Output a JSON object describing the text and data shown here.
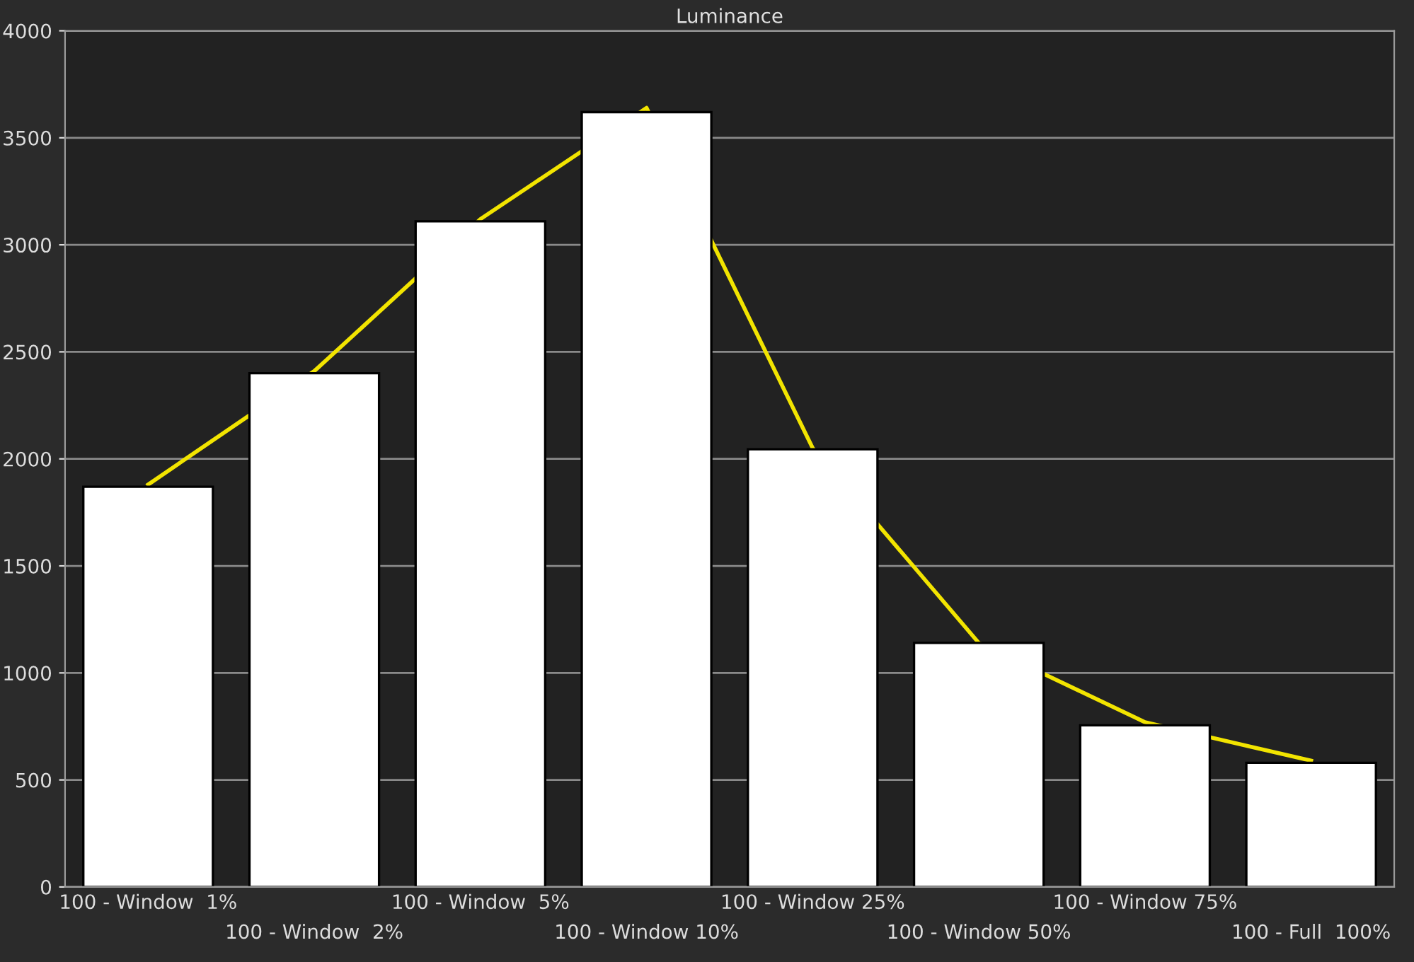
{
  "chart_data": {
    "type": "bar",
    "title": "Luminance",
    "categories": [
      "100 - Window  1%",
      "100 - Window  2%",
      "100 - Window  5%",
      "100 - Window 10%",
      "100 - Window 25%",
      "100 - Window 50%",
      "100 - Window 75%",
      "100 - Full  100%"
    ],
    "series": [
      {
        "color": "#ffffff",
        "values": [
          1870,
          2400,
          3110,
          3620,
          2045,
          1140,
          755,
          580
        ]
      },
      {
        "type": "line",
        "color": "#f2e400",
        "values": [
          1880,
          2410,
          3120,
          3640,
          2050,
          1140,
          770,
          590
        ]
      }
    ],
    "ylim": [
      0,
      4000
    ],
    "yticks": [
      0,
      500,
      1000,
      1500,
      2000,
      2500,
      3000,
      3500,
      4000
    ],
    "grid": "y",
    "marker": "none",
    "line_style": "solid"
  }
}
